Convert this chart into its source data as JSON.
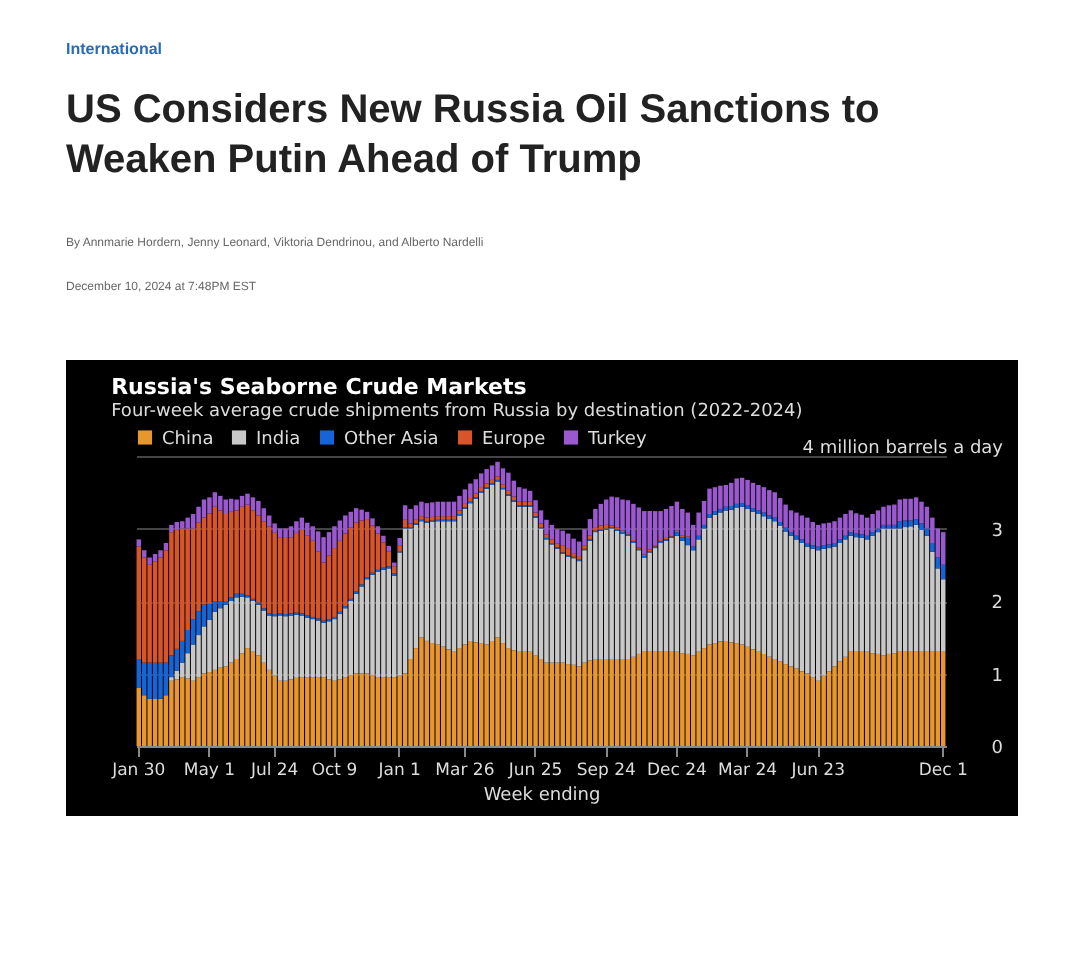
{
  "chart_data": {
    "type": "bar",
    "stacked": true,
    "title": "Russia's Seaborne Crude Markets",
    "subtitle": "Four-week average crude shipments from Russia by destination (2022-2024)",
    "annotations": [
      "International",
      "US Considers New Russia Oil Sanctions to Weaken Putin Ahead of Trump",
      "By Annmarie Hordern, Jenny Leonard, Viktoria Dendrinou, and Alberto Nardelli",
      "December 10, 2024 at 7:48PM EST"
    ],
    "xlabel": "Week ending",
    "categories": [
      "Jan 30",
      null,
      null,
      null,
      null,
      null,
      null,
      null,
      null,
      null,
      null,
      null,
      null,
      "May 1",
      null,
      null,
      null,
      null,
      null,
      null,
      null,
      null,
      null,
      null,
      null,
      "Jul 24",
      null,
      null,
      null,
      null,
      null,
      null,
      null,
      null,
      null,
      null,
      "Oct 9",
      null,
      null,
      null,
      null,
      null,
      null,
      null,
      null,
      null,
      null,
      null,
      "Jan 1",
      null,
      null,
      null,
      null,
      null,
      null,
      null,
      null,
      null,
      null,
      null,
      "Mar 26",
      null,
      null,
      null,
      null,
      null,
      null,
      null,
      null,
      null,
      null,
      null,
      null,
      "Jun 25",
      null,
      null,
      null,
      null,
      null,
      null,
      null,
      null,
      null,
      null,
      null,
      null,
      "Sep 24",
      null,
      null,
      null,
      null,
      null,
      null,
      null,
      null,
      null,
      null,
      null,
      null,
      "Dec 24",
      null,
      null,
      null,
      null,
      null,
      null,
      null,
      null,
      null,
      null,
      null,
      null,
      "Mar 24",
      null,
      null,
      null,
      null,
      null,
      null,
      null,
      null,
      null,
      null,
      null,
      null,
      "Jun 23",
      null,
      null,
      null,
      null,
      null,
      null,
      null,
      null,
      null,
      null,
      null,
      null,
      null,
      null,
      null,
      null,
      null,
      null,
      null,
      null,
      null,
      null,
      "Dec 1"
    ],
    "ylim": [
      0,
      4
    ],
    "yticks": [
      0,
      1,
      2,
      3,
      {
        "value": 4,
        "label": "4 million barrels a day"
      }
    ],
    "grid": "y",
    "legend": "top left",
    "series": [
      {
        "name": "China",
        "color": "#e8962e",
        "values": [
          0.8,
          0.7,
          0.65,
          0.65,
          0.65,
          0.7,
          0.9,
          0.92,
          0.95,
          0.93,
          0.9,
          0.95,
          1.0,
          1.02,
          1.05,
          1.08,
          1.1,
          1.15,
          1.2,
          1.28,
          1.35,
          1.3,
          1.25,
          1.15,
          1.05,
          0.97,
          0.9,
          0.9,
          0.92,
          0.94,
          0.95,
          0.95,
          0.95,
          0.95,
          0.95,
          0.92,
          0.9,
          0.92,
          0.95,
          0.98,
          1.0,
          1.0,
          1.0,
          0.98,
          0.95,
          0.95,
          0.95,
          0.95,
          0.97,
          1.0,
          1.2,
          1.35,
          1.5,
          1.45,
          1.42,
          1.4,
          1.37,
          1.33,
          1.3,
          1.35,
          1.4,
          1.45,
          1.43,
          1.42,
          1.4,
          1.45,
          1.5,
          1.42,
          1.35,
          1.32,
          1.3,
          1.3,
          1.3,
          1.25,
          1.2,
          1.15,
          1.15,
          1.15,
          1.15,
          1.13,
          1.12,
          1.1,
          1.15,
          1.18,
          1.2,
          1.2,
          1.2,
          1.2,
          1.2,
          1.2,
          1.2,
          1.23,
          1.27,
          1.3,
          1.3,
          1.3,
          1.3,
          1.3,
          1.3,
          1.3,
          1.28,
          1.27,
          1.25,
          1.3,
          1.35,
          1.4,
          1.42,
          1.44,
          1.45,
          1.43,
          1.42,
          1.4,
          1.37,
          1.33,
          1.3,
          1.27,
          1.23,
          1.2,
          1.17,
          1.13,
          1.1,
          1.07,
          1.03,
          1.0,
          0.95,
          0.9,
          0.97,
          1.03,
          1.1,
          1.17,
          1.23,
          1.3,
          1.3,
          1.3,
          1.3,
          1.28,
          1.27,
          1.25,
          1.27,
          1.28,
          1.3,
          1.3,
          1.3,
          1.3,
          1.3,
          1.3,
          1.3,
          1.3,
          1.3
        ]
      },
      {
        "name": "India",
        "color": "#c8c8c8",
        "values": [
          0,
          0,
          0,
          0,
          0,
          0,
          0.05,
          0.12,
          0.2,
          0.35,
          0.5,
          0.58,
          0.65,
          0.72,
          0.8,
          0.82,
          0.85,
          0.85,
          0.85,
          0.78,
          0.7,
          0.7,
          0.7,
          0.72,
          0.75,
          0.82,
          0.9,
          0.89,
          0.88,
          0.87,
          0.85,
          0.82,
          0.8,
          0.78,
          0.75,
          0.8,
          0.85,
          0.9,
          0.95,
          1.02,
          1.1,
          1.2,
          1.3,
          1.38,
          1.45,
          1.48,
          1.5,
          1.4,
          1.7,
          2.0,
          1.8,
          1.7,
          1.6,
          1.63,
          1.67,
          1.7,
          1.73,
          1.77,
          1.8,
          1.83,
          1.87,
          1.9,
          1.98,
          2.07,
          2.15,
          2.15,
          2.15,
          2.12,
          2.1,
          2.05,
          2.0,
          2.0,
          2.0,
          1.9,
          1.8,
          1.7,
          1.63,
          1.57,
          1.5,
          1.48,
          1.47,
          1.45,
          1.55,
          1.65,
          1.75,
          1.77,
          1.78,
          1.8,
          1.77,
          1.73,
          1.7,
          1.57,
          1.43,
          1.3,
          1.37,
          1.43,
          1.5,
          1.53,
          1.57,
          1.6,
          1.55,
          1.5,
          1.45,
          1.55,
          1.65,
          1.75,
          1.77,
          1.78,
          1.8,
          1.83,
          1.87,
          1.9,
          1.9,
          1.9,
          1.9,
          1.9,
          1.9,
          1.9,
          1.87,
          1.83,
          1.8,
          1.78,
          1.77,
          1.75,
          1.77,
          1.8,
          1.75,
          1.7,
          1.65,
          1.63,
          1.62,
          1.6,
          1.58,
          1.57,
          1.55,
          1.62,
          1.68,
          1.75,
          1.73,
          1.72,
          1.7,
          1.72,
          1.73,
          1.75,
          1.68,
          1.6,
          1.38,
          1.15,
          1.0
        ]
      },
      {
        "name": "Other Asia",
        "color": "#1565d8",
        "values": [
          0.4,
          0.45,
          0.5,
          0.5,
          0.5,
          0.45,
          0.3,
          0.3,
          0.3,
          0.32,
          0.35,
          0.33,
          0.3,
          0.22,
          0.15,
          0.1,
          0.05,
          0.05,
          0.05,
          0.04,
          0.03,
          0.03,
          0.03,
          0.03,
          0.03,
          0.03,
          0.03,
          0.03,
          0.03,
          0.03,
          0.03,
          0.03,
          0.03,
          0.03,
          0.03,
          0.03,
          0.03,
          0.03,
          0.03,
          0.03,
          0.03,
          0.03,
          0.03,
          0.03,
          0.03,
          0.03,
          0.03,
          0.03,
          0.02,
          0.02,
          0.02,
          0.02,
          0.02,
          0.02,
          0.02,
          0.02,
          0.02,
          0.02,
          0.02,
          0.02,
          0.02,
          0.02,
          0.02,
          0.02,
          0.02,
          0.02,
          0.02,
          0.02,
          0.02,
          0.02,
          0.02,
          0.02,
          0.02,
          0.02,
          0.02,
          0.02,
          0.02,
          0.02,
          0.02,
          0.02,
          0.02,
          0.02,
          0.02,
          0.02,
          0.02,
          0.02,
          0.02,
          0.02,
          0.02,
          0.02,
          0.02,
          0.02,
          0.02,
          0.02,
          0.02,
          0.02,
          0.02,
          0.02,
          0.02,
          0.05,
          0.05,
          0.1,
          0.05,
          0.05,
          0.05,
          0.05,
          0.05,
          0.05,
          0.05,
          0.05,
          0.05,
          0.05,
          0.05,
          0.05,
          0.05,
          0.05,
          0.05,
          0.05,
          0.05,
          0.05,
          0.05,
          0.05,
          0.05,
          0.05,
          0.05,
          0.05,
          0.05,
          0.05,
          0.05,
          0.05,
          0.05,
          0.05,
          0.05,
          0.05,
          0.05,
          0.05,
          0.05,
          0.05,
          0.05,
          0.05,
          0.1,
          0.09,
          0.08,
          0.08,
          0.09,
          0.1,
          0.12,
          0.15,
          0.2
        ]
      },
      {
        "name": "Europe",
        "color": "#d8552a",
        "values": [
          1.55,
          1.45,
          1.35,
          1.4,
          1.45,
          1.55,
          1.7,
          1.65,
          1.55,
          1.4,
          1.25,
          1.22,
          1.2,
          1.25,
          1.3,
          1.25,
          1.2,
          1.18,
          1.15,
          1.2,
          1.25,
          1.22,
          1.2,
          1.2,
          1.2,
          1.12,
          1.05,
          1.05,
          1.05,
          1.1,
          1.15,
          1.1,
          1.05,
          0.92,
          0.8,
          0.88,
          0.95,
          0.98,
          1.0,
          0.98,
          0.95,
          0.88,
          0.8,
          0.65,
          0.5,
          0.35,
          0.2,
          0.1,
          0.08,
          0.1,
          0.05,
          0.05,
          0.05,
          0.05,
          0.05,
          0.05,
          0.05,
          0.05,
          0.05,
          0.05,
          0.05,
          0.05,
          0.05,
          0.05,
          0.05,
          0.05,
          0.05,
          0.05,
          0.05,
          0.05,
          0.05,
          0.05,
          0.05,
          0.05,
          0.05,
          0.05,
          0.05,
          0.05,
          0.1,
          0.1,
          0.05,
          0.05,
          0.05,
          0.05,
          0.05,
          0.05,
          0.05,
          0.02,
          0.02,
          0.02,
          0.02,
          0.02,
          0.02,
          0.02,
          0.02,
          0.02,
          0.02,
          0.02,
          0.02,
          0.02,
          0.02,
          0.02,
          0,
          0,
          0,
          0,
          0,
          0,
          0,
          0,
          0,
          0,
          0,
          0,
          0,
          0,
          0,
          0,
          0,
          0,
          0,
          0,
          0,
          0,
          0,
          0,
          0,
          0,
          0,
          0,
          0,
          0,
          0,
          0,
          0,
          0,
          0,
          0,
          0,
          0,
          0,
          0,
          0,
          0,
          0,
          0,
          0,
          0,
          0
        ]
      },
      {
        "name": "Turkey",
        "color": "#9b59d0",
        "values": [
          0.1,
          0.1,
          0.1,
          0.1,
          0.1,
          0.1,
          0.1,
          0.1,
          0.1,
          0.15,
          0.2,
          0.22,
          0.25,
          0.22,
          0.2,
          0.2,
          0.2,
          0.18,
          0.15,
          0.15,
          0.15,
          0.18,
          0.2,
          0.18,
          0.15,
          0.13,
          0.12,
          0.13,
          0.15,
          0.16,
          0.17,
          0.18,
          0.2,
          0.28,
          0.35,
          0.32,
          0.3,
          0.28,
          0.25,
          0.22,
          0.2,
          0.15,
          0.1,
          0.1,
          0.1,
          0.09,
          0.08,
          0.05,
          0.1,
          0.2,
          0.2,
          0.2,
          0.2,
          0.2,
          0.2,
          0.2,
          0.2,
          0.2,
          0.2,
          0.2,
          0.2,
          0.2,
          0.2,
          0.2,
          0.2,
          0.2,
          0.2,
          0.22,
          0.25,
          0.22,
          0.2,
          0.18,
          0.15,
          0.17,
          0.18,
          0.2,
          0.2,
          0.2,
          0.2,
          0.2,
          0.2,
          0.2,
          0.22,
          0.23,
          0.25,
          0.3,
          0.35,
          0.4,
          0.42,
          0.43,
          0.45,
          0.5,
          0.55,
          0.6,
          0.53,
          0.47,
          0.4,
          0.4,
          0.4,
          0.4,
          0.37,
          0.33,
          0.3,
          0.32,
          0.33,
          0.35,
          0.33,
          0.32,
          0.3,
          0.32,
          0.35,
          0.35,
          0.35,
          0.35,
          0.35,
          0.35,
          0.35,
          0.35,
          0.33,
          0.32,
          0.3,
          0.32,
          0.33,
          0.35,
          0.32,
          0.3,
          0.3,
          0.3,
          0.3,
          0.3,
          0.3,
          0.3,
          0.28,
          0.27,
          0.25,
          0.25,
          0.25,
          0.25,
          0.27,
          0.28,
          0.3,
          0.3,
          0.3,
          0.3,
          0.3,
          0.3,
          0.35,
          0.4,
          0.45
        ]
      }
    ]
  }
}
